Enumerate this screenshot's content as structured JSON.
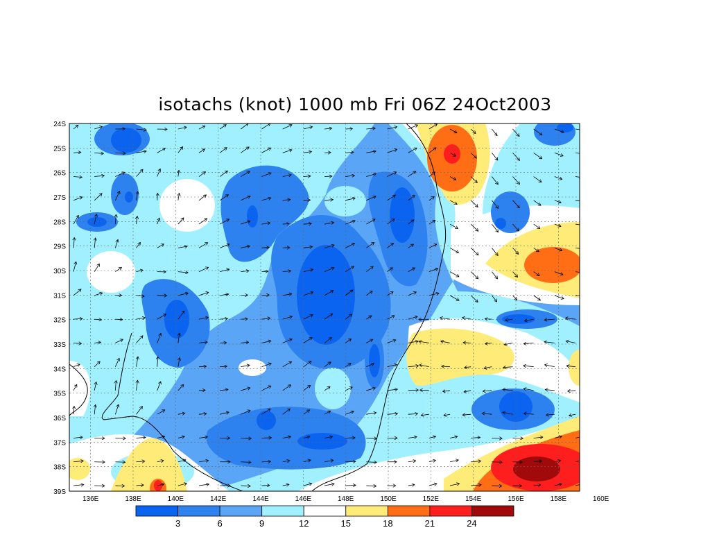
{
  "title": "isotachs (knot) 1000 mb Fri 06Z 24Oct2003",
  "lat_labels": [
    "24S",
    "25S",
    "26S",
    "27S",
    "28S",
    "29S",
    "30S",
    "31S",
    "32S",
    "33S",
    "34S",
    "35S",
    "36S",
    "37S",
    "38S",
    "39S"
  ],
  "lon_labels": [
    "136E",
    "138E",
    "140E",
    "142E",
    "144E",
    "146E",
    "148E",
    "150E",
    "152E",
    "154E",
    "156E",
    "158E",
    "160E"
  ],
  "colorbar": {
    "labels": [
      "3",
      "6",
      "9",
      "12",
      "15",
      "18",
      "21",
      "24"
    ],
    "colors": [
      "#0a64f0",
      "#2d82f0",
      "#5aa5f5",
      "#a0f0ff",
      "#ffffff",
      "#ffeb78",
      "#ff6e14",
      "#ff1e1e",
      "#a00a0a"
    ]
  }
}
